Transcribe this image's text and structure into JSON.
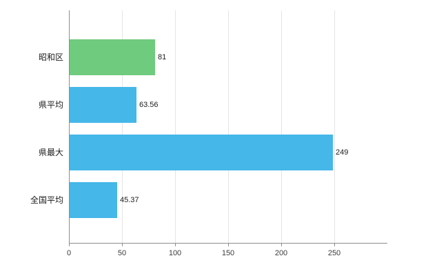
{
  "chart_data": {
    "type": "bar",
    "orientation": "horizontal",
    "title": "",
    "categories": [
      "昭和区",
      "県平均",
      "県最大",
      "全国平均"
    ],
    "values": [
      81,
      63.56,
      249,
      45.37
    ],
    "value_labels": [
      "81",
      "63.56",
      "249",
      "45.37"
    ],
    "series_colors": [
      "#6fcb7d",
      "#45b7e8",
      "#45b7e8",
      "#45b7e8"
    ],
    "x_ticks": [
      0,
      50,
      100,
      150,
      200,
      250
    ],
    "x_tick_labels": [
      "0",
      "50",
      "100",
      "150",
      "200",
      "250"
    ],
    "xlim": [
      0,
      300
    ],
    "grid": true,
    "legend": "none",
    "colors": {
      "background": "#ffffff",
      "grid": "#e4e4e4",
      "axis": "#8c8c8c",
      "tick_text": "#3c3c3c",
      "category_text": "#1a1a1a",
      "value_text": "#1a1a1a"
    }
  }
}
